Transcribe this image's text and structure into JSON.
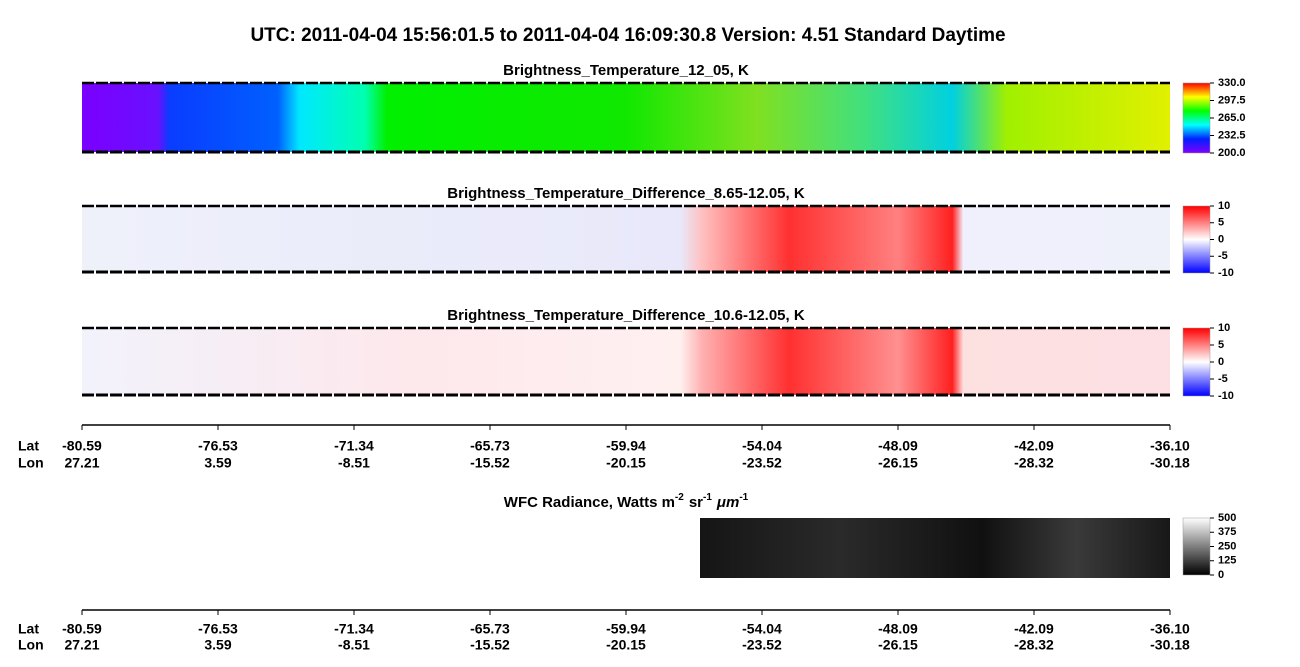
{
  "title": "UTC:  2011-04-04   15:56:01.5  to  2011-04-04   16:09:30.8    Version: 4.51  Standard Daytime",
  "panels": [
    {
      "title": "Brightness_Temperature_12_05, K",
      "colorbar": {
        "lim": [
          200,
          330
        ],
        "ticks": [
          {
            "value": 330,
            "label": "330.0"
          },
          {
            "value": 297.5,
            "label": "297.5"
          },
          {
            "value": 265,
            "label": "265.0"
          },
          {
            "value": 232.5,
            "label": "232.5"
          },
          {
            "value": 200,
            "label": "200.0"
          }
        ]
      }
    },
    {
      "title": "Brightness_Temperature_Difference_8.65-12.05, K",
      "colorbar": {
        "lim": [
          -10,
          10
        ],
        "ticks": [
          10,
          5,
          0,
          -5,
          -10
        ]
      }
    },
    {
      "title": "Brightness_Temperature_Difference_10.6-12.05, K",
      "colorbar": {
        "lim": [
          -10,
          10
        ],
        "ticks": [
          10,
          5,
          0,
          -5,
          -10
        ]
      }
    }
  ],
  "axis": {
    "lat_label": "Lat",
    "lon_label": "Lon",
    "lat": [
      "-80.59",
      "-76.53",
      "-71.34",
      "-65.73",
      "-59.94",
      "-54.04",
      "-48.09",
      "-42.09",
      "-36.10"
    ],
    "lon": [
      "27.21",
      "3.59",
      "-8.51",
      "-15.52",
      "-20.15",
      "-23.52",
      "-26.15",
      "-28.32",
      "-30.18"
    ]
  },
  "wfc": {
    "title": [
      {
        "text": "WFC Radiance, Watts m",
        "sup": "-2"
      },
      {
        "text": "sr",
        "sup": "-1"
      },
      {
        "text": "μm",
        "sup": "-1"
      }
    ],
    "colorbar": {
      "lim": [
        0,
        500
      ],
      "ticks": [
        500,
        375,
        250,
        125,
        0
      ]
    }
  }
}
